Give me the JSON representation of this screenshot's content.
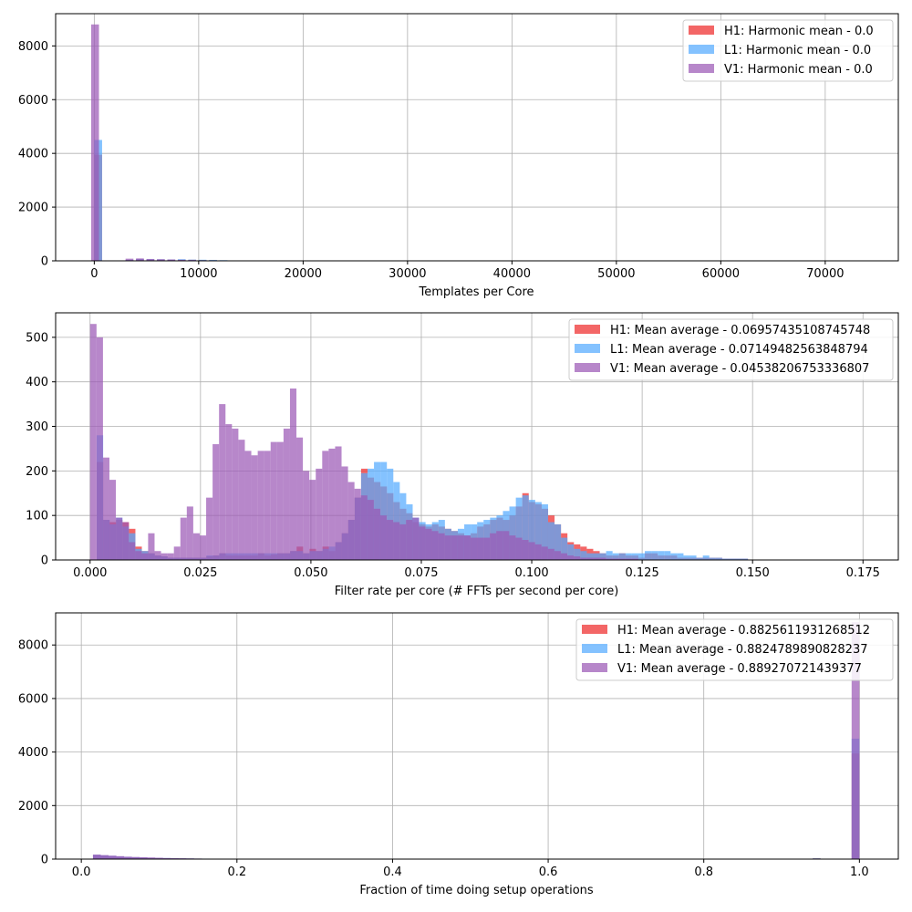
{
  "colors": {
    "H1": "#ee2b2b",
    "L1": "#55aaff",
    "V1": "#9b59b6"
  },
  "chart_data": [
    {
      "type": "histogram",
      "xlabel": "Templates per Core",
      "ylabel": "",
      "xlim": [
        -3700,
        77000
      ],
      "ylim": [
        0,
        9200
      ],
      "xticks": [
        {
          "value": 0,
          "label": "0"
        },
        {
          "value": 10000,
          "label": "10000"
        },
        {
          "value": 20000,
          "label": "20000"
        },
        {
          "value": 30000,
          "label": "30000"
        },
        {
          "value": 40000,
          "label": "40000"
        },
        {
          "value": 50000,
          "label": "50000"
        },
        {
          "value": 60000,
          "label": "60000"
        },
        {
          "value": 70000,
          "label": "70000"
        }
      ],
      "yticks": [
        {
          "value": 0,
          "label": "0"
        },
        {
          "value": 2000,
          "label": "2000"
        },
        {
          "value": 4000,
          "label": "4000"
        },
        {
          "value": 6000,
          "label": "6000"
        },
        {
          "value": 8000,
          "label": "8000"
        }
      ],
      "grid": true,
      "legend_position": "top-right",
      "legend": [
        {
          "key": "H1",
          "label": "H1: Harmonic mean  - 0.0"
        },
        {
          "key": "L1",
          "label": "L1: Harmonic mean  - 0.0"
        },
        {
          "key": "V1",
          "label": "V1: Harmonic mean  - 0.0"
        }
      ],
      "series": [
        {
          "key": "H1",
          "bin_width": 750,
          "bins": [
            [
              0,
              3950
            ],
            [
              3000,
              30
            ],
            [
              4000,
              60
            ],
            [
              5000,
              50
            ],
            [
              6000,
              50
            ],
            [
              7000,
              45
            ],
            [
              8000,
              40
            ],
            [
              9000,
              40
            ],
            [
              10000,
              30
            ],
            [
              11000,
              25
            ],
            [
              12000,
              15
            ]
          ]
        },
        {
          "key": "L1",
          "bin_width": 750,
          "bins": [
            [
              0,
              4500
            ],
            [
              3000,
              40
            ],
            [
              4000,
              70
            ],
            [
              5000,
              60
            ],
            [
              6000,
              55
            ],
            [
              7000,
              50
            ],
            [
              8000,
              60
            ],
            [
              9000,
              45
            ],
            [
              10000,
              40
            ],
            [
              11000,
              35
            ],
            [
              12000,
              25
            ],
            [
              13000,
              15
            ]
          ]
        },
        {
          "key": "V1",
          "bin_width": 750,
          "bins": [
            [
              -300,
              8800
            ],
            [
              3000,
              80
            ],
            [
              4000,
              90
            ],
            [
              5000,
              70
            ],
            [
              6000,
              60
            ],
            [
              7000,
              50
            ],
            [
              8000,
              40
            ],
            [
              9000,
              30
            ],
            [
              10000,
              20
            ]
          ]
        }
      ]
    },
    {
      "type": "histogram",
      "xlabel": "Filter rate per core (# FFTs per second per core)",
      "ylabel": "",
      "xlim": [
        -0.0078,
        0.183
      ],
      "ylim": [
        0,
        555
      ],
      "xticks": [
        {
          "value": 0.0,
          "label": "0.000"
        },
        {
          "value": 0.025,
          "label": "0.025"
        },
        {
          "value": 0.05,
          "label": "0.050"
        },
        {
          "value": 0.075,
          "label": "0.075"
        },
        {
          "value": 0.1,
          "label": "0.100"
        },
        {
          "value": 0.125,
          "label": "0.125"
        },
        {
          "value": 0.15,
          "label": "0.150"
        },
        {
          "value": 0.175,
          "label": "0.175"
        }
      ],
      "yticks": [
        {
          "value": 0,
          "label": "0"
        },
        {
          "value": 100,
          "label": "100"
        },
        {
          "value": 200,
          "label": "200"
        },
        {
          "value": 300,
          "label": "300"
        },
        {
          "value": 400,
          "label": "400"
        },
        {
          "value": 500,
          "label": "500"
        }
      ],
      "grid": true,
      "legend_position": "top-right",
      "legend": [
        {
          "key": "H1",
          "label": "H1: Mean average - 0.06957435108745748"
        },
        {
          "key": "L1",
          "label": "L1: Mean average - 0.07149482563848794"
        },
        {
          "key": "V1",
          "label": "V1: Mean average - 0.04538206753336807"
        }
      ],
      "series": [
        {
          "key": "H1",
          "x0": 0.0015,
          "bin_width": 0.00146,
          "values": [
            220,
            90,
            85,
            90,
            85,
            70,
            30,
            20,
            15,
            10,
            8,
            5,
            5,
            5,
            5,
            5,
            5,
            8,
            10,
            15,
            10,
            10,
            10,
            10,
            10,
            15,
            10,
            12,
            15,
            15,
            20,
            30,
            15,
            25,
            20,
            30,
            20,
            40,
            60,
            90,
            140,
            205,
            185,
            175,
            165,
            150,
            130,
            115,
            105,
            85,
            80,
            75,
            80,
            75,
            70,
            65,
            60,
            55,
            60,
            75,
            80,
            90,
            95,
            90,
            100,
            120,
            150,
            130,
            125,
            115,
            100,
            80,
            60,
            40,
            35,
            30,
            25,
            20,
            15,
            10,
            10,
            15,
            10,
            10,
            5,
            15,
            15,
            10,
            10,
            10,
            5,
            5,
            5,
            5,
            5,
            5,
            5,
            3,
            3,
            3,
            3
          ]
        },
        {
          "key": "L1",
          "x0": 0.0015,
          "bin_width": 0.00146,
          "values": [
            280,
            90,
            80,
            95,
            75,
            60,
            25,
            20,
            15,
            10,
            8,
            5,
            5,
            5,
            5,
            5,
            5,
            10,
            10,
            15,
            15,
            15,
            15,
            15,
            15,
            15,
            15,
            15,
            15,
            15,
            20,
            20,
            15,
            20,
            20,
            25,
            30,
            40,
            60,
            90,
            140,
            195,
            205,
            220,
            220,
            205,
            175,
            150,
            125,
            95,
            85,
            80,
            85,
            90,
            70,
            65,
            70,
            80,
            80,
            85,
            90,
            95,
            100,
            110,
            120,
            140,
            145,
            135,
            130,
            125,
            85,
            80,
            50,
            35,
            25,
            20,
            15,
            15,
            15,
            20,
            15,
            15,
            15,
            15,
            15,
            20,
            20,
            20,
            20,
            15,
            15,
            10,
            10,
            5,
            10,
            5,
            5,
            3,
            3,
            3,
            3
          ]
        },
        {
          "key": "V1",
          "x0": 0.0,
          "bin_width": 0.00146,
          "values": [
            530,
            500,
            230,
            180,
            95,
            85,
            40,
            20,
            15,
            60,
            20,
            15,
            15,
            30,
            95,
            120,
            60,
            55,
            140,
            260,
            350,
            305,
            295,
            270,
            245,
            235,
            245,
            245,
            265,
            265,
            295,
            385,
            275,
            200,
            180,
            205,
            245,
            250,
            255,
            210,
            175,
            160,
            145,
            135,
            115,
            100,
            90,
            85,
            80,
            90,
            95,
            75,
            70,
            65,
            60,
            55,
            55,
            55,
            55,
            50,
            50,
            50,
            60,
            65,
            65,
            55,
            50,
            45,
            40,
            35,
            30,
            25,
            20,
            15,
            10,
            8,
            5,
            5,
            5,
            5,
            3,
            3,
            3,
            3,
            3
          ]
        }
      ]
    },
    {
      "type": "histogram",
      "xlabel": "Fraction of time doing setup operations",
      "ylabel": "",
      "xlim": [
        -0.033,
        1.05
      ],
      "ylim": [
        0,
        9200
      ],
      "xticks": [
        {
          "value": 0.0,
          "label": "0.0"
        },
        {
          "value": 0.2,
          "label": "0.2"
        },
        {
          "value": 0.4,
          "label": "0.4"
        },
        {
          "value": 0.6,
          "label": "0.6"
        },
        {
          "value": 0.8,
          "label": "0.8"
        },
        {
          "value": 1.0,
          "label": "1.0"
        }
      ],
      "yticks": [
        {
          "value": 0,
          "label": "0"
        },
        {
          "value": 2000,
          "label": "2000"
        },
        {
          "value": 4000,
          "label": "4000"
        },
        {
          "value": 6000,
          "label": "6000"
        },
        {
          "value": 8000,
          "label": "8000"
        }
      ],
      "grid": true,
      "legend_position": "top-right",
      "legend": [
        {
          "key": "H1",
          "label": "H1: Mean average - 0.8825611931268512"
        },
        {
          "key": "L1",
          "label": "L1: Mean average - 0.8824789890828237"
        },
        {
          "key": "V1",
          "label": "V1: Mean average - 0.889270721439377"
        }
      ],
      "series": [
        {
          "key": "H1",
          "bin_width": 0.01,
          "bins": [
            [
              0.015,
              150
            ],
            [
              0.025,
              130
            ],
            [
              0.035,
              110
            ],
            [
              0.045,
              95
            ],
            [
              0.055,
              80
            ],
            [
              0.065,
              65
            ],
            [
              0.075,
              55
            ],
            [
              0.085,
              50
            ],
            [
              0.095,
              40
            ],
            [
              0.105,
              35
            ],
            [
              0.115,
              30
            ],
            [
              0.125,
              25
            ],
            [
              0.135,
              20
            ],
            [
              0.145,
              18
            ],
            [
              0.155,
              15
            ],
            [
              0.165,
              12
            ],
            [
              0.175,
              10
            ],
            [
              0.185,
              8
            ],
            [
              0.195,
              6
            ],
            [
              0.94,
              30
            ],
            [
              0.99,
              3950
            ]
          ]
        },
        {
          "key": "L1",
          "bin_width": 0.01,
          "bins": [
            [
              0.015,
              160
            ],
            [
              0.025,
              140
            ],
            [
              0.035,
              120
            ],
            [
              0.045,
              100
            ],
            [
              0.055,
              85
            ],
            [
              0.065,
              70
            ],
            [
              0.075,
              60
            ],
            [
              0.085,
              50
            ],
            [
              0.095,
              45
            ],
            [
              0.105,
              40
            ],
            [
              0.115,
              35
            ],
            [
              0.125,
              30
            ],
            [
              0.135,
              25
            ],
            [
              0.145,
              20
            ],
            [
              0.155,
              18
            ],
            [
              0.165,
              15
            ],
            [
              0.175,
              12
            ],
            [
              0.185,
              10
            ],
            [
              0.195,
              8
            ],
            [
              0.205,
              6
            ],
            [
              0.94,
              30
            ],
            [
              0.99,
              4500
            ]
          ]
        },
        {
          "key": "V1",
          "bin_width": 0.01,
          "bins": [
            [
              0.015,
              170
            ],
            [
              0.025,
              150
            ],
            [
              0.035,
              130
            ],
            [
              0.045,
              110
            ],
            [
              0.055,
              90
            ],
            [
              0.065,
              80
            ],
            [
              0.075,
              70
            ],
            [
              0.085,
              60
            ],
            [
              0.095,
              50
            ],
            [
              0.105,
              40
            ],
            [
              0.115,
              35
            ],
            [
              0.125,
              30
            ],
            [
              0.135,
              25
            ],
            [
              0.145,
              20
            ],
            [
              0.155,
              15
            ],
            [
              0.165,
              12
            ],
            [
              0.175,
              10
            ],
            [
              0.185,
              8
            ],
            [
              0.195,
              6
            ],
            [
              0.99,
              8850
            ]
          ]
        }
      ]
    }
  ]
}
